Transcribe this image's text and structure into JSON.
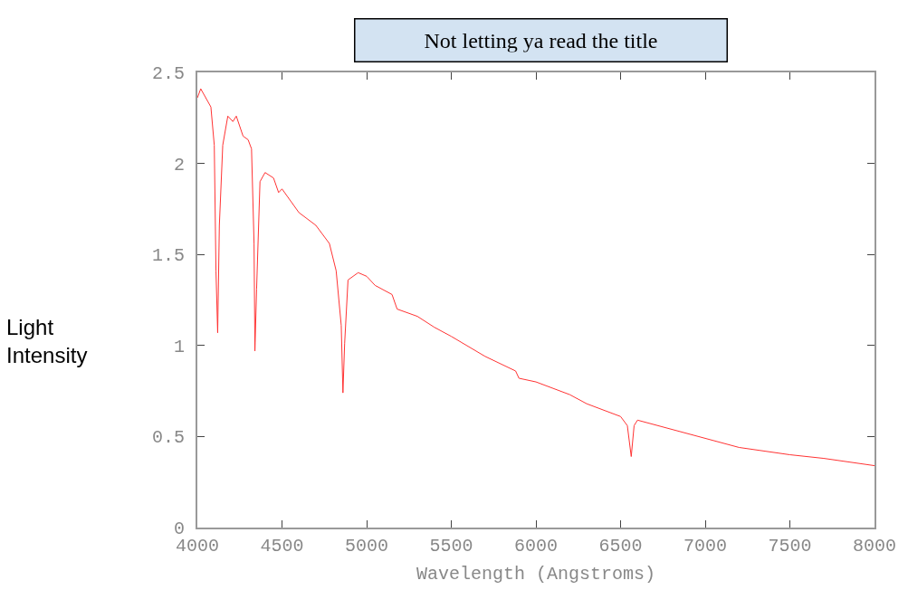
{
  "chart_data": {
    "type": "line",
    "title": "Not letting ya read the title",
    "xlabel": "Wavelength (Angstroms)",
    "ylabel": "Light Intensity",
    "x": [
      4000,
      4020,
      4080,
      4100,
      4110,
      4120,
      4130,
      4150,
      4180,
      4210,
      4230,
      4270,
      4300,
      4320,
      4335,
      4340,
      4350,
      4370,
      4400,
      4450,
      4480,
      4500,
      4600,
      4700,
      4780,
      4820,
      4850,
      4860,
      4870,
      4890,
      4950,
      5000,
      5050,
      5150,
      5180,
      5300,
      5400,
      5500,
      5700,
      5880,
      5900,
      6000,
      6200,
      6300,
      6500,
      6540,
      6563,
      6580,
      6600,
      7000,
      7200,
      7500,
      7700,
      8000
    ],
    "series": [
      {
        "color": "#ff3333",
        "values": [
          2.36,
          2.41,
          2.31,
          2.1,
          1.41,
          1.07,
          1.66,
          2.1,
          2.26,
          2.23,
          2.26,
          2.15,
          2.13,
          2.08,
          1.56,
          0.97,
          1.31,
          1.9,
          1.95,
          1.92,
          1.84,
          1.86,
          1.73,
          1.66,
          1.56,
          1.41,
          1.11,
          0.74,
          1.01,
          1.36,
          1.4,
          1.38,
          1.33,
          1.28,
          1.2,
          1.16,
          1.1,
          1.05,
          0.94,
          0.86,
          0.82,
          0.8,
          0.73,
          0.68,
          0.61,
          0.56,
          0.39,
          0.56,
          0.59,
          0.49,
          0.44,
          0.4,
          0.38,
          0.34
        ]
      }
    ],
    "xlim": [
      4000,
      8000
    ],
    "xticks": [
      4000,
      4500,
      5000,
      5500,
      6000,
      6500,
      7000,
      7500,
      8000
    ],
    "ylim": [
      0,
      2.5
    ],
    "yticks": [
      0,
      0.5,
      1,
      1.5,
      2,
      2.5
    ],
    "grid": false,
    "marker": "none",
    "line_style": "solid"
  }
}
